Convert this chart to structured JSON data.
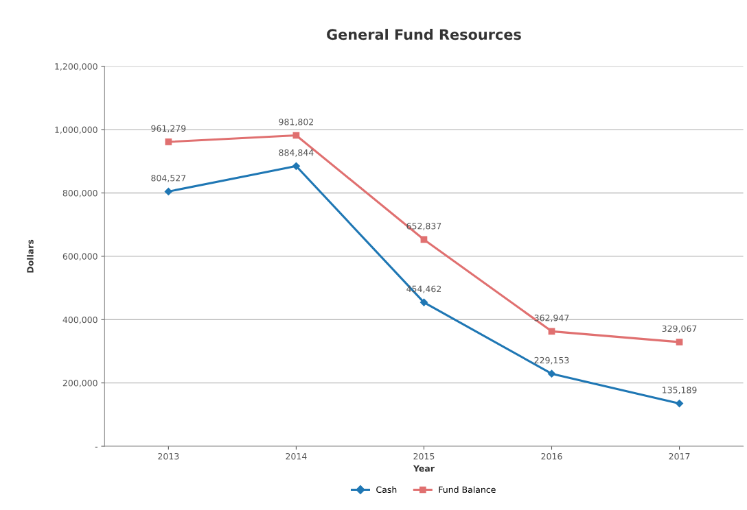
{
  "chart_data": {
    "type": "line",
    "title": "General Fund Resources",
    "xlabel": "Year",
    "ylabel": "Dollars",
    "categories": [
      "2013",
      "2014",
      "2015",
      "2016",
      "2017"
    ],
    "series": [
      {
        "name": "Cash",
        "color": "#1f77b4",
        "marker": "diamond",
        "values": [
          804527,
          884844,
          454462,
          229153,
          135189
        ],
        "value_labels": [
          "804,527",
          "884,844",
          "454,462",
          "229,153",
          "135,189"
        ]
      },
      {
        "name": "Fund Balance",
        "color": "#e07070",
        "marker": "square",
        "values": [
          961279,
          981802,
          652837,
          362947,
          329067
        ],
        "value_labels": [
          "961,279",
          "981,802",
          "652,837",
          "362,947",
          "329,067"
        ]
      }
    ],
    "ylim": [
      0,
      1200000
    ],
    "yticks": [
      {
        "value": 0,
        "label": "-"
      },
      {
        "value": 200000,
        "label": "200,000"
      },
      {
        "value": 400000,
        "label": "400,000"
      },
      {
        "value": 600000,
        "label": "600,000"
      },
      {
        "value": 800000,
        "label": "800,000"
      },
      {
        "value": 1000000,
        "label": "1,000,000"
      },
      {
        "value": 1200000,
        "label": "1,200,000"
      }
    ],
    "grid": "y",
    "legend": "bottom",
    "line_style": "solid"
  }
}
